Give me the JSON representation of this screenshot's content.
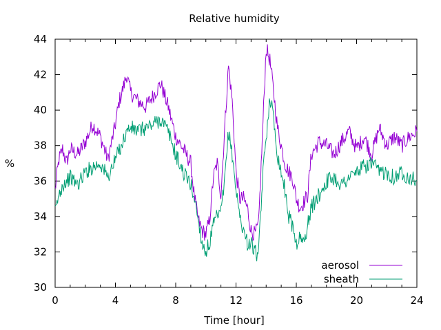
{
  "chart_data": {
    "type": "line",
    "title": "Relative humidity",
    "xlabel": "Time [hour]",
    "ylabel": "%",
    "xlim": [
      0,
      24
    ],
    "ylim": [
      30,
      44
    ],
    "xticks": [
      0,
      4,
      8,
      12,
      16,
      20,
      24
    ],
    "yticks": [
      30,
      32,
      34,
      36,
      38,
      40,
      42,
      44
    ],
    "grid": false,
    "legend_position": "bottom-right",
    "series": [
      {
        "name": "aerosol",
        "color": "#9400d3",
        "x": [
          0,
          0.25,
          0.5,
          0.75,
          1,
          1.5,
          2,
          2.5,
          3,
          3.5,
          4,
          4.25,
          4.5,
          4.75,
          5,
          5.5,
          6,
          6.5,
          7,
          7.5,
          8,
          8.5,
          9,
          9.25,
          9.5,
          9.75,
          10,
          10.25,
          10.5,
          10.75,
          11,
          11.25,
          11.5,
          11.75,
          12,
          12.25,
          12.5,
          12.75,
          13,
          13.25,
          13.5,
          13.75,
          14,
          14.25,
          14.5,
          14.75,
          15,
          15.25,
          15.5,
          15.75,
          16,
          16.25,
          16.5,
          16.75,
          17,
          17.5,
          18,
          18.5,
          19,
          19.5,
          20,
          20.5,
          21,
          21.5,
          22,
          22.5,
          23,
          23.5,
          24
        ],
        "y": [
          35.5,
          37.2,
          37.8,
          37.0,
          37.8,
          37.5,
          38.2,
          39.2,
          38.5,
          37.2,
          39.2,
          40.5,
          41.2,
          42.0,
          41.0,
          40.5,
          40.2,
          40.8,
          41.5,
          40.2,
          38.5,
          37.8,
          37.0,
          35.0,
          33.8,
          33.2,
          33.0,
          33.8,
          36.2,
          37.0,
          35.2,
          39.0,
          42.5,
          40.5,
          36.5,
          35.0,
          35.0,
          34.5,
          33.2,
          33.0,
          33.5,
          38.5,
          43.5,
          42.8,
          41.0,
          39.0,
          38.0,
          37.0,
          36.5,
          36.2,
          35.0,
          34.5,
          34.8,
          35.2,
          37.5,
          38.2,
          38.0,
          37.5,
          38.2,
          38.8,
          37.8,
          38.5,
          37.5,
          39.0,
          38.0,
          38.5,
          38.0,
          38.5,
          38.8
        ]
      },
      {
        "name": "sheath",
        "color": "#009e73",
        "x": [
          0,
          0.25,
          0.5,
          0.75,
          1,
          1.5,
          2,
          2.5,
          3,
          3.5,
          4,
          4.25,
          4.5,
          4.75,
          5,
          5.5,
          6,
          6.5,
          7,
          7.5,
          8,
          8.5,
          9,
          9.25,
          9.5,
          9.75,
          10,
          10.25,
          10.5,
          10.75,
          11,
          11.25,
          11.5,
          11.75,
          12,
          12.25,
          12.5,
          12.75,
          13,
          13.25,
          13.5,
          13.75,
          14,
          14.25,
          14.5,
          14.75,
          15,
          15.25,
          15.5,
          15.75,
          16,
          16.25,
          16.5,
          16.75,
          17,
          17.5,
          18,
          18.5,
          19,
          19.5,
          20,
          20.5,
          21,
          21.5,
          22,
          22.5,
          23,
          23.5,
          24
        ],
        "y": [
          34.2,
          35.2,
          35.8,
          36.0,
          36.2,
          35.8,
          36.5,
          36.8,
          37.0,
          36.2,
          37.2,
          37.8,
          38.2,
          38.8,
          39.0,
          38.8,
          39.0,
          39.2,
          39.5,
          38.8,
          37.5,
          36.5,
          35.8,
          35.0,
          33.8,
          32.5,
          32.0,
          32.5,
          33.5,
          34.0,
          34.2,
          36.0,
          38.8,
          37.5,
          35.5,
          34.0,
          33.2,
          32.5,
          32.5,
          32.0,
          31.8,
          36.0,
          38.5,
          40.8,
          39.5,
          37.5,
          36.5,
          35.5,
          34.0,
          33.5,
          32.5,
          32.8,
          32.5,
          33.5,
          34.5,
          35.2,
          36.0,
          36.2,
          35.8,
          36.2,
          36.5,
          36.8,
          37.0,
          36.5,
          36.5,
          36.2,
          36.5,
          36.2,
          36.0
        ]
      }
    ]
  }
}
